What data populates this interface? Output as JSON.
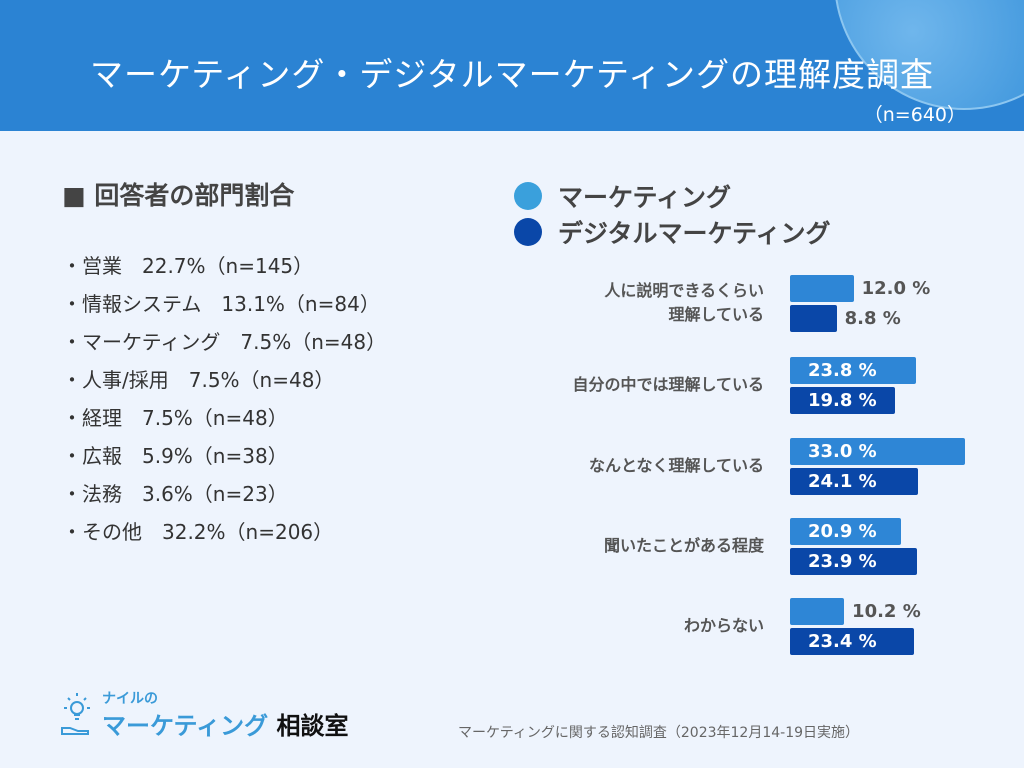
{
  "header": {
    "title": "マーケティング・デジタルマーケティングの理解度調査",
    "n": "（n=640）"
  },
  "departments": {
    "title": "■ 回答者の部門割合",
    "items": [
      "・営業　22.7%（n=145）",
      "・情報システム　13.1%（n=84）",
      "・マーケティング　7.5%（n=48）",
      "・人事/採用　7.5%（n=48）",
      "・経理　7.5%（n=48）",
      "・広報　5.9%（n=38）",
      "・法務　3.6%（n=23）",
      "・その他　32.2%（n=206）"
    ]
  },
  "colors": {
    "marketing": "#2e86d6",
    "digital": "#0a47a8",
    "legend_marketing": "#3aa0dc"
  },
  "chart_data": {
    "type": "bar",
    "orientation": "horizontal",
    "unit": "%",
    "categories": [
      "人に説明できるくらい\n理解している",
      "自分の中では理解している",
      "なんとなく理解している",
      "聞いたことがある程度",
      "わからない"
    ],
    "series": [
      {
        "name": "マーケティング",
        "values": [
          12.0,
          23.8,
          33.0,
          20.9,
          10.2
        ]
      },
      {
        "name": "デジタルマーケティング",
        "values": [
          8.8,
          19.8,
          24.1,
          23.9,
          23.4
        ]
      }
    ],
    "legend": "top"
  },
  "footer": {
    "logo_small": "ナイルの",
    "logo_main": "マーケティング",
    "logo_suffix": "相談室",
    "note": "マーケティングに関する認知調査（2023年12月14-19日実施）"
  }
}
